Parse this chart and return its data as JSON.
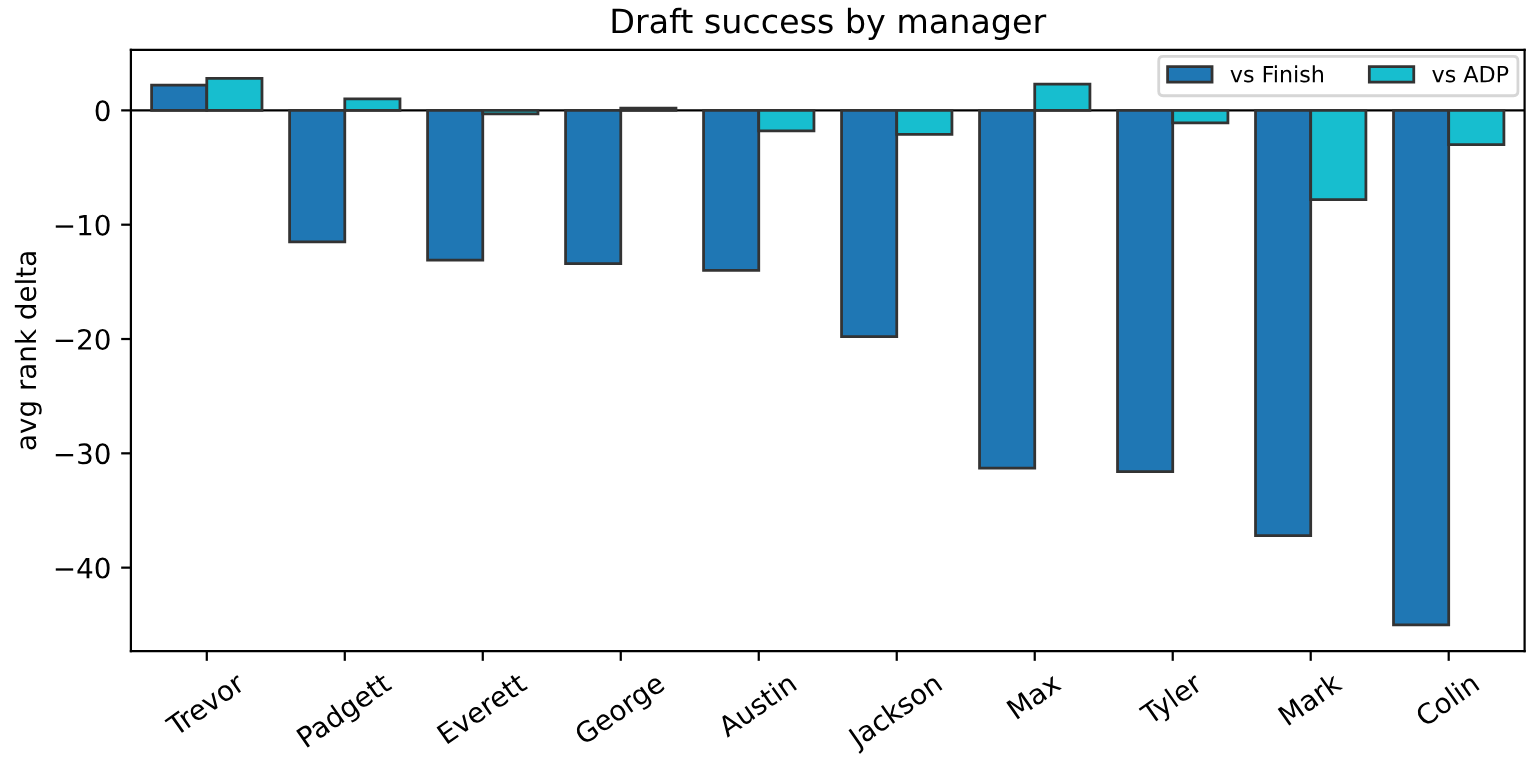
{
  "chart_data": {
    "type": "bar",
    "title": "Draft success by manager",
    "ylabel": "avg rank delta",
    "categories": [
      "Trevor",
      "Padgett",
      "Everett",
      "George",
      "Austin",
      "Jackson",
      "Max",
      "Tyler",
      "Mark",
      "Colin"
    ],
    "series": [
      {
        "name": "vs Finish",
        "color": "#1f77b4",
        "values": [
          2.2,
          -11.5,
          -13.1,
          -13.4,
          -14.0,
          -19.8,
          -31.3,
          -31.6,
          -37.2,
          -45.0
        ]
      },
      {
        "name": "vs ADP",
        "color": "#17becf",
        "values": [
          2.8,
          1.0,
          -0.3,
          0.2,
          -1.8,
          -2.1,
          2.3,
          -1.1,
          -7.8,
          -3.0
        ]
      }
    ],
    "ylim": [
      -47.3,
      5.3
    ],
    "yticks": [
      {
        "value": -40,
        "label": "−40"
      },
      {
        "value": -30,
        "label": "−30"
      },
      {
        "value": -20,
        "label": "−20"
      },
      {
        "value": -10,
        "label": "−10"
      },
      0
    ],
    "ref_lines": [
      {
        "axis": "y",
        "value": 0,
        "color": "#000000"
      }
    ],
    "grid": false,
    "legend": "top right"
  }
}
